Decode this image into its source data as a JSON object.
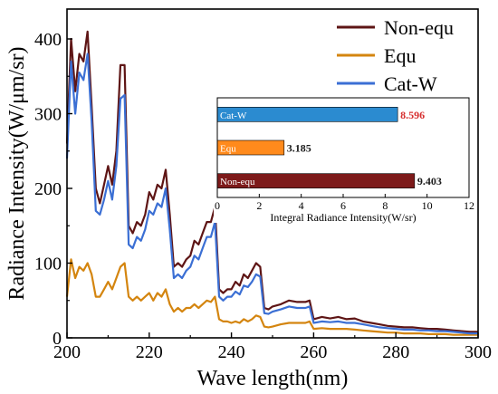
{
  "chart_data": [
    {
      "type": "line",
      "xlabel": "Wave length(nm)",
      "ylabel": "Radiance Intensity(W/μm/sr)",
      "xlim": [
        200,
        300
      ],
      "ylim": [
        0,
        440
      ],
      "xticks": [
        200,
        220,
        240,
        260,
        280,
        300
      ],
      "yticks": [
        0,
        100,
        200,
        300,
        400
      ],
      "grid": false,
      "legend_position": "top-right",
      "series": [
        {
          "name": "Non-equ",
          "color": "#5e1515",
          "x": [
            200,
            201,
            202,
            203,
            204,
            205,
            206,
            207,
            208,
            209,
            210,
            211,
            212,
            213,
            214,
            215,
            216,
            217,
            218,
            219,
            220,
            221,
            222,
            223,
            224,
            225,
            226,
            227,
            228,
            229,
            230,
            231,
            232,
            233,
            234,
            235,
            236,
            237,
            238,
            239,
            240,
            241,
            242,
            243,
            244,
            245,
            246,
            247,
            248,
            249,
            250,
            252,
            254,
            256,
            258,
            259,
            260,
            262,
            264,
            266,
            268,
            270,
            272,
            274,
            276,
            278,
            280,
            282,
            284,
            286,
            288,
            290,
            292,
            294,
            296,
            298,
            300
          ],
          "y": [
            260,
            400,
            330,
            380,
            370,
            410,
            310,
            200,
            180,
            205,
            230,
            205,
            250,
            365,
            365,
            150,
            140,
            155,
            150,
            165,
            195,
            185,
            205,
            200,
            225,
            165,
            95,
            100,
            95,
            105,
            110,
            130,
            125,
            140,
            155,
            155,
            175,
            65,
            60,
            65,
            65,
            75,
            70,
            85,
            80,
            90,
            100,
            95,
            40,
            38,
            42,
            45,
            50,
            48,
            48,
            50,
            25,
            28,
            26,
            28,
            25,
            26,
            22,
            20,
            18,
            16,
            15,
            14,
            14,
            13,
            12,
            12,
            11,
            10,
            9,
            8,
            8
          ]
        },
        {
          "name": "Equ",
          "color": "#d4850f",
          "x": [
            200,
            201,
            202,
            203,
            204,
            205,
            206,
            207,
            208,
            209,
            210,
            211,
            212,
            213,
            214,
            215,
            216,
            217,
            218,
            219,
            220,
            221,
            222,
            223,
            224,
            225,
            226,
            227,
            228,
            229,
            230,
            231,
            232,
            233,
            234,
            235,
            236,
            237,
            238,
            239,
            240,
            241,
            242,
            243,
            244,
            245,
            246,
            247,
            248,
            249,
            250,
            252,
            254,
            256,
            258,
            259,
            260,
            262,
            264,
            266,
            268,
            270,
            272,
            274,
            276,
            278,
            280,
            282,
            284,
            286,
            288,
            290,
            292,
            294,
            296,
            298,
            300
          ],
          "y": [
            55,
            105,
            80,
            95,
            90,
            100,
            85,
            55,
            55,
            65,
            75,
            65,
            80,
            95,
            100,
            55,
            50,
            55,
            50,
            55,
            60,
            50,
            60,
            55,
            65,
            45,
            35,
            40,
            35,
            40,
            40,
            45,
            40,
            45,
            50,
            48,
            55,
            25,
            22,
            22,
            20,
            22,
            20,
            25,
            22,
            25,
            30,
            28,
            15,
            14,
            15,
            18,
            20,
            20,
            20,
            22,
            12,
            13,
            12,
            12,
            12,
            11,
            10,
            9,
            8,
            7,
            7,
            6,
            6,
            6,
            5,
            5,
            5,
            4,
            4,
            4,
            4
          ]
        },
        {
          "name": "Cat-W",
          "color": "#3b6fd4",
          "x": [
            200,
            201,
            202,
            203,
            204,
            205,
            206,
            207,
            208,
            209,
            210,
            211,
            212,
            213,
            214,
            215,
            216,
            217,
            218,
            219,
            220,
            221,
            222,
            223,
            224,
            225,
            226,
            227,
            228,
            229,
            230,
            231,
            232,
            233,
            234,
            235,
            236,
            237,
            238,
            239,
            240,
            241,
            242,
            243,
            244,
            245,
            246,
            247,
            248,
            249,
            250,
            252,
            254,
            256,
            258,
            259,
            260,
            262,
            264,
            266,
            268,
            270,
            272,
            274,
            276,
            278,
            280,
            282,
            284,
            286,
            288,
            290,
            292,
            294,
            296,
            298,
            300
          ],
          "y": [
            240,
            370,
            300,
            355,
            345,
            380,
            290,
            170,
            165,
            185,
            210,
            185,
            230,
            320,
            325,
            125,
            120,
            135,
            130,
            145,
            170,
            165,
            180,
            175,
            200,
            145,
            80,
            85,
            80,
            90,
            95,
            110,
            105,
            120,
            135,
            135,
            155,
            55,
            50,
            55,
            55,
            62,
            58,
            70,
            68,
            75,
            85,
            82,
            33,
            32,
            35,
            38,
            42,
            40,
            40,
            42,
            20,
            22,
            21,
            22,
            20,
            20,
            18,
            16,
            14,
            13,
            12,
            11,
            11,
            10,
            10,
            9,
            9,
            8,
            7,
            6,
            6
          ]
        }
      ]
    },
    {
      "type": "bar",
      "orientation": "horizontal",
      "xlabel": "Integral Radiance Intensity(W/sr)",
      "xlim": [
        0,
        12
      ],
      "xticks": [
        0,
        2,
        4,
        6,
        8,
        10,
        12
      ],
      "categories": [
        "Cat-W",
        "Equ",
        "Non-equ"
      ],
      "values": [
        8.596,
        3.185,
        9.403
      ],
      "value_labels": [
        "8.596",
        "3.185",
        "9.403"
      ],
      "colors": [
        "#2b8bd0",
        "#ff8a1c",
        "#7d1a1a"
      ],
      "label_colors": [
        "#d62f2f",
        "#1a1a1a",
        "#1a1a1a"
      ]
    }
  ]
}
